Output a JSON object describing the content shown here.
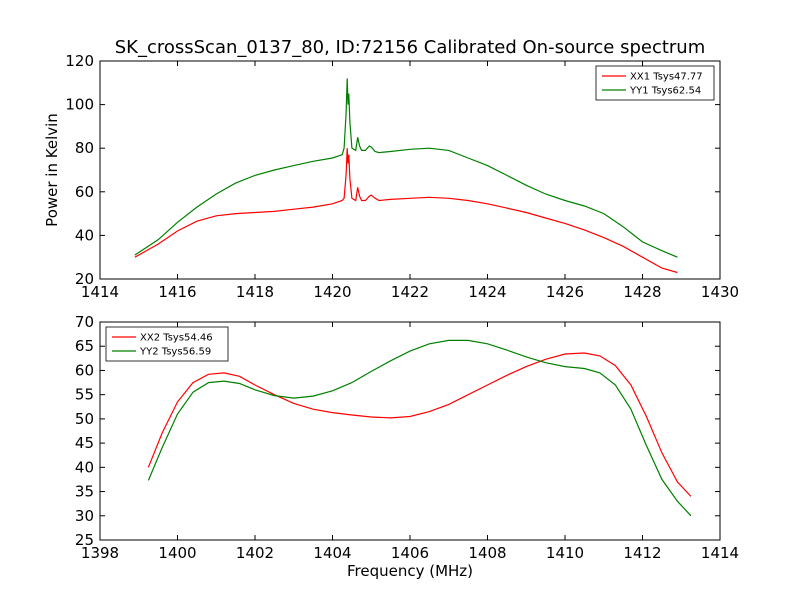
{
  "title": "SK_crossScan_0137_80, ID:72156 Calibrated On-source spectrum",
  "chart_data": [
    {
      "type": "line",
      "ylabel": "Power in Kelvin",
      "xlabel": "",
      "xlim": [
        1414,
        1430
      ],
      "ylim": [
        20,
        120
      ],
      "xticks": [
        "1414",
        "1416",
        "1418",
        "1420",
        "1422",
        "1424",
        "1426",
        "1428",
        "1430"
      ],
      "yticks": [
        "20",
        "40",
        "60",
        "80",
        "100",
        "120"
      ],
      "legend": "top-right",
      "series": [
        {
          "name": "XX1 Tsys47.77",
          "color": "#ff0000",
          "x": [
            1414.9,
            1415.5,
            1416.0,
            1416.5,
            1417.0,
            1417.5,
            1418.0,
            1418.5,
            1419.0,
            1419.5,
            1420.0,
            1420.25,
            1420.3,
            1420.35,
            1420.38,
            1420.4,
            1420.42,
            1420.45,
            1420.5,
            1420.6,
            1420.65,
            1420.7,
            1420.75,
            1420.85,
            1420.95,
            1421.0,
            1421.1,
            1421.2,
            1421.5,
            1422.0,
            1422.5,
            1423.0,
            1423.5,
            1424.0,
            1424.5,
            1425.0,
            1425.5,
            1426.0,
            1426.5,
            1427.0,
            1427.5,
            1428.0,
            1428.5,
            1428.9
          ],
          "y": [
            30,
            36,
            42,
            46.5,
            49,
            50,
            50.5,
            51,
            52,
            53,
            54.5,
            56,
            57,
            68,
            80,
            73,
            77,
            66,
            57,
            56,
            62,
            58,
            56,
            56,
            58,
            58.5,
            57,
            56,
            56.5,
            57,
            57.5,
            57,
            56,
            54.5,
            52.5,
            50.5,
            48,
            45.5,
            42.5,
            39,
            35,
            30,
            25,
            23
          ]
        },
        {
          "name": "YY1 Tsys62.54",
          "color": "#008000",
          "x": [
            1414.9,
            1415.5,
            1416.0,
            1416.5,
            1417.0,
            1417.5,
            1418.0,
            1418.5,
            1419.0,
            1419.5,
            1420.0,
            1420.25,
            1420.3,
            1420.35,
            1420.38,
            1420.4,
            1420.42,
            1420.45,
            1420.5,
            1420.6,
            1420.65,
            1420.7,
            1420.75,
            1420.85,
            1420.95,
            1421.0,
            1421.1,
            1421.2,
            1421.5,
            1422.0,
            1422.5,
            1423.0,
            1423.5,
            1424.0,
            1424.5,
            1425.0,
            1425.5,
            1426.0,
            1426.5,
            1427.0,
            1427.5,
            1428.0,
            1428.5,
            1428.9
          ],
          "y": [
            31,
            38,
            46,
            53,
            59,
            64,
            67.5,
            70,
            72,
            74,
            75.5,
            77,
            80,
            96,
            112,
            100,
            105,
            92,
            80,
            79,
            85,
            81,
            79,
            79,
            81,
            80.5,
            78.5,
            78,
            78.5,
            79.5,
            80,
            79,
            75.5,
            72,
            67.5,
            63,
            59,
            56,
            53.5,
            50,
            44,
            37,
            33,
            30
          ]
        }
      ]
    },
    {
      "type": "line",
      "ylabel": "",
      "xlabel": "Frequency (MHz)",
      "xlim": [
        1398,
        1414
      ],
      "ylim": [
        25,
        70
      ],
      "xticks": [
        "1398",
        "1400",
        "1402",
        "1404",
        "1406",
        "1408",
        "1410",
        "1412",
        "1414"
      ],
      "yticks": [
        "25",
        "30",
        "35",
        "40",
        "45",
        "50",
        "55",
        "60",
        "65",
        "70"
      ],
      "legend": "top-left",
      "series": [
        {
          "name": "XX2 Tsys54.46",
          "color": "#ff0000",
          "x": [
            1399.25,
            1399.6,
            1400.0,
            1400.4,
            1400.8,
            1401.2,
            1401.6,
            1402.0,
            1402.5,
            1403.0,
            1403.5,
            1404.0,
            1404.5,
            1405.0,
            1405.5,
            1406.0,
            1406.5,
            1407.0,
            1407.5,
            1408.0,
            1408.5,
            1409.0,
            1409.5,
            1410.0,
            1410.5,
            1410.9,
            1411.3,
            1411.7,
            1412.1,
            1412.5,
            1412.9,
            1413.25
          ],
          "y": [
            40,
            47,
            53.5,
            57.5,
            59.2,
            59.5,
            58.8,
            57,
            55,
            53.2,
            52,
            51.3,
            50.8,
            50.4,
            50.2,
            50.5,
            51.5,
            53,
            55,
            57,
            59,
            60.8,
            62.3,
            63.4,
            63.6,
            63,
            61,
            57,
            50.5,
            43,
            37,
            34
          ]
        },
        {
          "name": "YY2 Tsys56.59",
          "color": "#008000",
          "x": [
            1399.25,
            1399.6,
            1400.0,
            1400.4,
            1400.8,
            1401.2,
            1401.6,
            1402.0,
            1402.5,
            1403.0,
            1403.5,
            1404.0,
            1404.5,
            1405.0,
            1405.5,
            1406.0,
            1406.5,
            1407.0,
            1407.5,
            1408.0,
            1408.5,
            1409.0,
            1409.5,
            1410.0,
            1410.5,
            1410.9,
            1411.3,
            1411.7,
            1412.1,
            1412.5,
            1412.9,
            1413.25
          ],
          "y": [
            37.3,
            44,
            51,
            55.5,
            57.5,
            57.8,
            57.3,
            56,
            54.8,
            54.3,
            54.7,
            55.8,
            57.5,
            59.8,
            62,
            64,
            65.5,
            66.2,
            66.2,
            65.5,
            64.2,
            62.8,
            61.6,
            60.8,
            60.4,
            59.5,
            57,
            52,
            44.5,
            37.5,
            33,
            30
          ]
        }
      ]
    }
  ]
}
